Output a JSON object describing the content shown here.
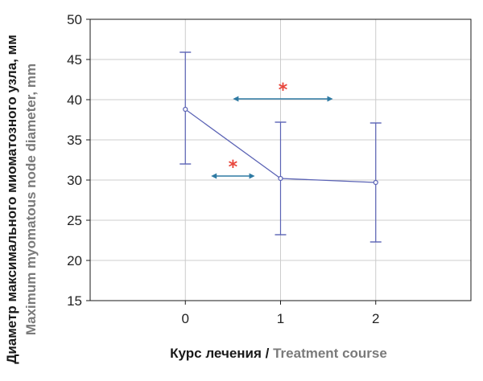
{
  "chart_data": {
    "type": "line",
    "title": "",
    "xlabel_ru": "Курс лечения / ",
    "xlabel_en": "Treatment course",
    "ylabel_ru": "Диаметр максимального миоматозного узла, мм",
    "ylabel_en": "Maximum myomatous node diameter, mm",
    "xlim": [
      -1,
      3
    ],
    "ylim": [
      15,
      50
    ],
    "x_ticks": [
      0,
      1,
      2
    ],
    "y_ticks": [
      15,
      20,
      25,
      30,
      35,
      40,
      45,
      50
    ],
    "grid": true,
    "series": [
      {
        "x": [
          0,
          1,
          2
        ],
        "y": [
          38.8,
          30.2,
          29.7
        ],
        "err_low": [
          32.0,
          23.2,
          22.3
        ],
        "err_high": [
          45.9,
          37.2,
          37.1
        ]
      }
    ],
    "annotations": [
      {
        "type": "double-arrow",
        "x_from": 0.27,
        "x_to": 0.73,
        "y": 30.5,
        "label": "*"
      },
      {
        "type": "double-arrow",
        "x_from": 0.5,
        "x_to": 1.55,
        "y": 40.1,
        "label": "*"
      }
    ],
    "colors": {
      "series": "#5b63b5",
      "arrows": "#2e7aa3",
      "star": "#e8463c",
      "grid": "#cccccc",
      "ylabel_ru": "#1a1a1a",
      "ylabel_en": "#7a7a7a",
      "xlabel_ru": "#1a1a1a",
      "xlabel_en": "#7a7a7a"
    }
  }
}
